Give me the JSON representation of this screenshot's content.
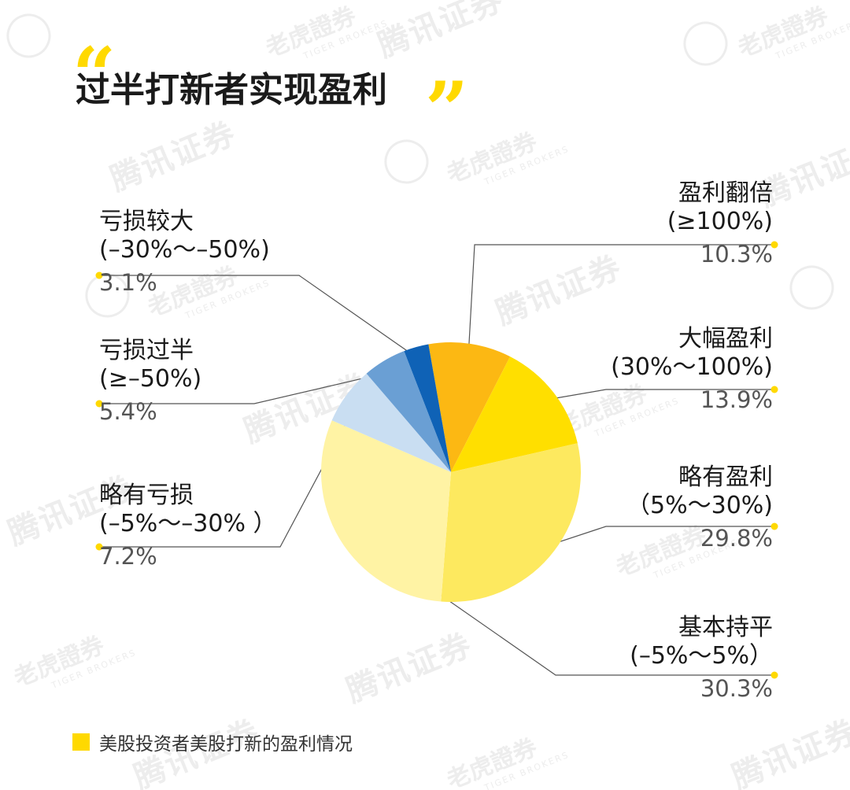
{
  "header": {
    "title": "过半打新者实现盈利",
    "quote_open": "“",
    "quote_close": "”"
  },
  "watermark": {
    "brand_a": "腾讯证券",
    "brand_b": "老虎證券",
    "brand_b_en": "TIGER BROKERS"
  },
  "legend": {
    "label": "美股投资者美股打新的盈利情况",
    "color": "#ffd900"
  },
  "chart_data": {
    "type": "pie",
    "title": "过半打新者实现盈利",
    "slices": [
      {
        "name": "盈利翻倍",
        "range": "(≥100%)",
        "value": 10.3,
        "label": "10.3%",
        "color": "#fcb813"
      },
      {
        "name": "大幅盈利",
        "range": "(30%～100%)",
        "value": 13.9,
        "label": "13.9%",
        "color": "#ffdf00"
      },
      {
        "name": "略有盈利",
        "range": "（5%～30%)",
        "value": 29.8,
        "label": "29.8%",
        "color": "#fde95f"
      },
      {
        "name": "基本持平",
        "range": "(–5%～5%）",
        "value": 30.3,
        "label": "30.3%",
        "color": "#fff3a4"
      },
      {
        "name": "略有亏损",
        "range": "(–5%～–30% ）",
        "value": 7.2,
        "label": "7.2%",
        "color": "#c9def2"
      },
      {
        "name": "亏损过半",
        "range": "(≥–50%)",
        "value": 5.4,
        "label": "5.4%",
        "color": "#6a9fd4"
      },
      {
        "name": "亏损较大",
        "range": "(–30%～–50%)",
        "value": 3.1,
        "label": "3.1%",
        "color": "#0f62b6"
      }
    ],
    "legend": "美股投资者美股打新的盈利情况",
    "legend_position": "bottom-left"
  },
  "colors": {
    "accent_yellow": "#ffd900",
    "leader_line": "#555555",
    "text_dark": "#1a1a1a",
    "text_value": "#555555"
  }
}
